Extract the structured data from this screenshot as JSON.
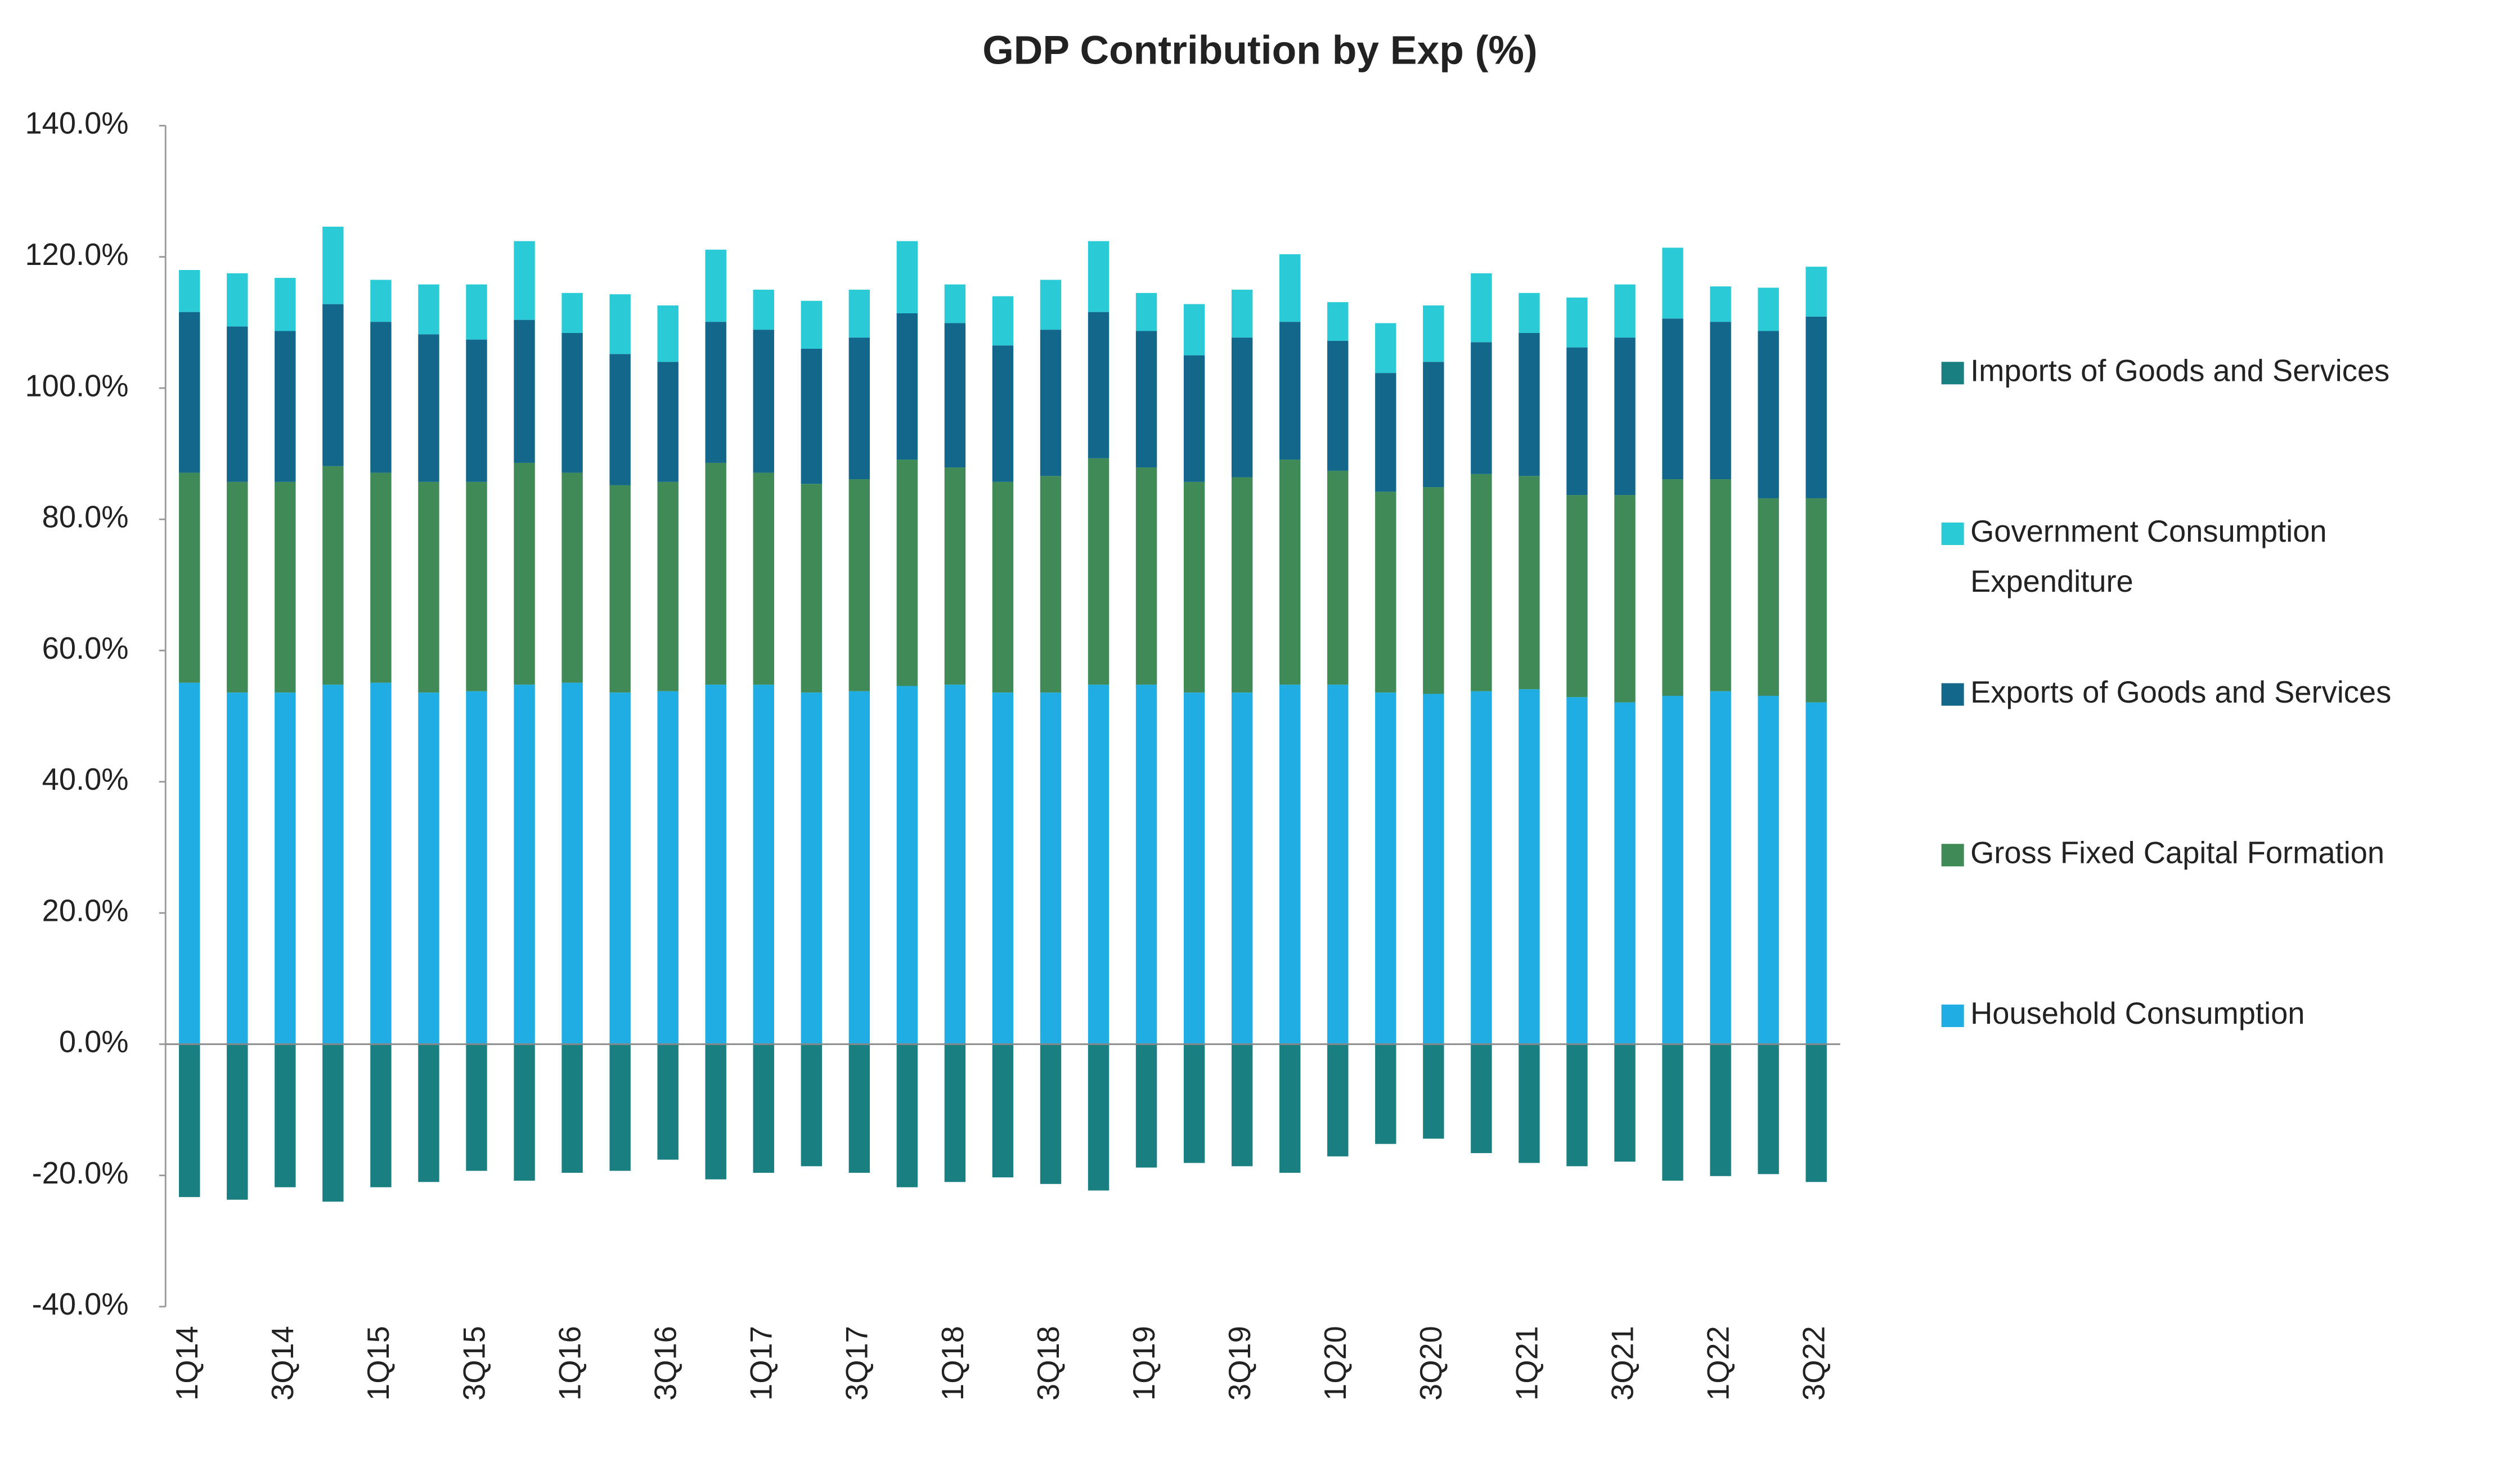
{
  "chart_data": {
    "type": "stacked_bar",
    "title": "GDP Contribution by Exp (%)",
    "categories": [
      "1Q14",
      null,
      "3Q14",
      null,
      "1Q15",
      null,
      "3Q15",
      null,
      "1Q16",
      null,
      "3Q16",
      null,
      "1Q17",
      null,
      "3Q17",
      null,
      "1Q18",
      null,
      "3Q18",
      null,
      "1Q19",
      null,
      "3Q19",
      null,
      "1Q20",
      null,
      "3Q20",
      null,
      "1Q21",
      null,
      "3Q21",
      null,
      "1Q22",
      null,
      "3Q22"
    ],
    "series": [
      {
        "name": "Household Consumption",
        "color": "#1fade3",
        "values": [
          55.1,
          53.6,
          53.6,
          54.8,
          55.1,
          53.6,
          53.8,
          54.8,
          55.1,
          53.6,
          53.8,
          54.8,
          54.8,
          53.6,
          53.8,
          54.6,
          54.8,
          53.6,
          53.6,
          54.8,
          54.8,
          53.6,
          53.6,
          54.8,
          54.8,
          53.6,
          53.4,
          53.8,
          54.1,
          52.9,
          52.1,
          53.1,
          53.8,
          53.1,
          52.1
        ]
      },
      {
        "name": "Gross Fixed Capital Formation",
        "color": "#3f8a56",
        "values": [
          32.0,
          32.1,
          32.1,
          33.3,
          32.0,
          32.1,
          31.9,
          33.8,
          32.0,
          31.6,
          31.9,
          33.8,
          32.3,
          31.8,
          32.3,
          34.5,
          33.1,
          32.1,
          33.0,
          34.5,
          33.1,
          32.1,
          32.8,
          34.3,
          32.6,
          30.6,
          31.5,
          33.1,
          32.5,
          30.8,
          31.6,
          33.0,
          32.3,
          30.1,
          31.1
        ]
      },
      {
        "name": "Exports of Goods and Services",
        "color": "#12678a",
        "values": [
          24.5,
          23.7,
          23.0,
          24.7,
          23.0,
          22.5,
          21.7,
          21.8,
          21.3,
          20.0,
          18.3,
          21.5,
          21.8,
          20.6,
          21.6,
          22.3,
          22.0,
          20.8,
          22.3,
          22.3,
          20.8,
          19.3,
          21.3,
          21.0,
          19.8,
          18.1,
          19.1,
          20.1,
          21.8,
          22.5,
          24.0,
          24.5,
          24.0,
          25.5,
          27.7
        ]
      },
      {
        "name": "Government Consumption Expenditure",
        "color": "#2acbd6",
        "values": [
          6.4,
          8.1,
          8.1,
          11.8,
          6.4,
          7.6,
          8.4,
          12.0,
          6.1,
          9.1,
          8.6,
          11.0,
          6.1,
          7.3,
          7.3,
          11.0,
          5.9,
          7.5,
          7.6,
          10.8,
          5.8,
          7.8,
          7.3,
          10.3,
          5.9,
          7.6,
          8.6,
          10.5,
          6.1,
          7.6,
          8.1,
          10.8,
          5.4,
          6.6,
          7.6
        ]
      },
      {
        "name": "Imports of Goods and Services",
        "color": "#1a7f80",
        "values": [
          -23.3,
          -23.7,
          -21.8,
          -24.0,
          -21.8,
          -21.0,
          -19.3,
          -20.8,
          -19.6,
          -19.3,
          -17.6,
          -20.6,
          -19.6,
          -18.6,
          -19.6,
          -21.8,
          -21.0,
          -20.3,
          -21.3,
          -22.3,
          -18.8,
          -18.1,
          -18.6,
          -19.6,
          -17.1,
          -15.2,
          -14.4,
          -16.6,
          -18.1,
          -18.6,
          -17.9,
          -20.8,
          -20.1,
          -19.8,
          -21.0
        ]
      }
    ],
    "ylim": [
      -40,
      140
    ],
    "yticks": [
      {
        "value": -40,
        "label": "-40.0%"
      },
      {
        "value": -20,
        "label": "-20.0%"
      },
      {
        "value": 0,
        "label": "0.0%"
      },
      {
        "value": 20,
        "label": "20.0%"
      },
      {
        "value": 40,
        "label": "40.0%"
      },
      {
        "value": 60,
        "label": "60.0%"
      },
      {
        "value": 80,
        "label": "80.0%"
      },
      {
        "value": 100,
        "label": "100.0%"
      },
      {
        "value": 120,
        "label": "120.0%"
      },
      {
        "value": 140,
        "label": "140.0%"
      }
    ],
    "legend": "right",
    "legend_order": "reversed"
  }
}
